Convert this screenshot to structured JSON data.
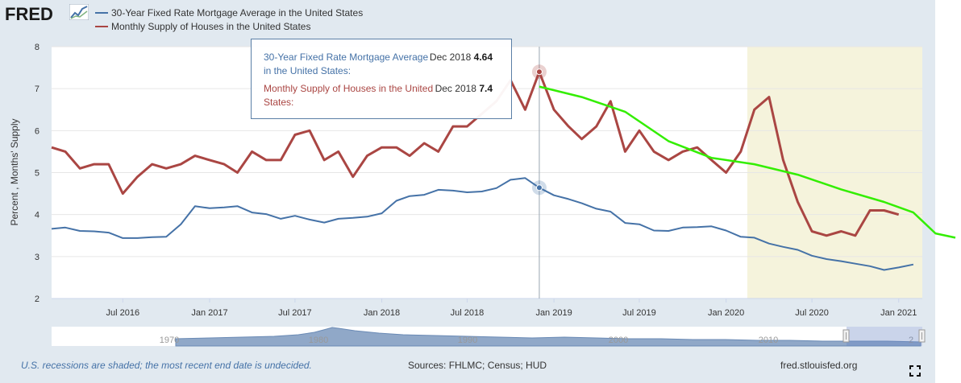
{
  "logo": {
    "text": "FRED"
  },
  "legend": [
    {
      "label": "30-Year Fixed Rate Mortgage Average in the United States",
      "color": "#4572a7"
    },
    {
      "label": "Monthly Supply of Houses in the United States",
      "color": "#aa4643"
    }
  ],
  "tooltip": {
    "rows": [
      {
        "name": "30-Year Fixed Rate Mortgage Average in the United States:",
        "date": "Dec 2018",
        "value": "4.64"
      },
      {
        "name": "Monthly Supply of Houses in the United States:",
        "date": "Dec 2018",
        "value": "7.4"
      }
    ]
  },
  "footer": {
    "recession_note": "U.S. recessions are shaded; the most recent end date is undecided.",
    "sources": "Sources: FHLMC; Census; HUD",
    "site": "fred.stlouisfed.org"
  },
  "navigator": {
    "labels": [
      "1970",
      "1980",
      "1990",
      "2000",
      "2010",
      "2"
    ]
  },
  "colors": {
    "mortgage": "#4572a7",
    "supply": "#aa4643",
    "annotation": "#33ee00",
    "recession": "#f5f3dc"
  },
  "chart_data": {
    "type": "line",
    "ylabel": "Percent , Months' Supply",
    "ylim": [
      2,
      8
    ],
    "yticks": [
      2,
      3,
      4,
      5,
      6,
      7,
      8
    ],
    "x_range": [
      "2016-02-01",
      "2021-02-20"
    ],
    "xticks": [
      {
        "date": "2016-07-01",
        "label": "Jul 2016"
      },
      {
        "date": "2017-01-01",
        "label": "Jan 2017"
      },
      {
        "date": "2017-07-01",
        "label": "Jul 2017"
      },
      {
        "date": "2018-01-01",
        "label": "Jan 2018"
      },
      {
        "date": "2018-07-01",
        "label": "Jul 2018"
      },
      {
        "date": "2019-01-01",
        "label": "Jan 2019"
      },
      {
        "date": "2019-07-01",
        "label": "Jul 2019"
      },
      {
        "date": "2020-01-01",
        "label": "Jan 2020"
      },
      {
        "date": "2020-07-01",
        "label": "Jul 2020"
      },
      {
        "date": "2021-01-01",
        "label": "Jan 2021"
      }
    ],
    "recession": {
      "start": "2020-02-15",
      "end": "2021-02-20"
    },
    "grid": true,
    "highlight_date": "2018-12-01",
    "series": [
      {
        "name": "30-Year Fixed Rate Mortgage Average in the United States",
        "x": [
          "2016-02-01",
          "2016-03-01",
          "2016-04-01",
          "2016-05-01",
          "2016-06-01",
          "2016-07-01",
          "2016-08-01",
          "2016-09-01",
          "2016-10-01",
          "2016-11-01",
          "2016-12-01",
          "2017-01-01",
          "2017-02-01",
          "2017-03-01",
          "2017-04-01",
          "2017-05-01",
          "2017-06-01",
          "2017-07-01",
          "2017-08-01",
          "2017-09-01",
          "2017-10-01",
          "2017-11-01",
          "2017-12-01",
          "2018-01-01",
          "2018-02-01",
          "2018-03-01",
          "2018-04-01",
          "2018-05-01",
          "2018-06-01",
          "2018-07-01",
          "2018-08-01",
          "2018-09-01",
          "2018-10-01",
          "2018-11-01",
          "2018-12-01",
          "2019-01-01",
          "2019-02-01",
          "2019-03-01",
          "2019-04-01",
          "2019-05-01",
          "2019-06-01",
          "2019-07-01",
          "2019-08-01",
          "2019-09-01",
          "2019-10-01",
          "2019-11-01",
          "2019-12-01",
          "2020-01-01",
          "2020-02-01",
          "2020-03-01",
          "2020-04-01",
          "2020-05-01",
          "2020-06-01",
          "2020-07-01",
          "2020-08-01",
          "2020-09-01",
          "2020-10-01",
          "2020-11-01",
          "2020-12-01",
          "2021-01-01",
          "2021-02-01"
        ],
        "values": [
          3.66,
          3.69,
          3.61,
          3.6,
          3.57,
          3.44,
          3.44,
          3.46,
          3.47,
          3.77,
          4.2,
          4.15,
          4.17,
          4.2,
          4.05,
          4.01,
          3.9,
          3.97,
          3.88,
          3.81,
          3.9,
          3.92,
          3.95,
          4.03,
          4.33,
          4.44,
          4.47,
          4.59,
          4.57,
          4.53,
          4.55,
          4.63,
          4.83,
          4.87,
          4.64,
          4.46,
          4.37,
          4.27,
          4.14,
          4.07,
          3.8,
          3.77,
          3.62,
          3.61,
          3.69,
          3.7,
          3.72,
          3.62,
          3.47,
          3.45,
          3.31,
          3.23,
          3.16,
          3.02,
          2.94,
          2.89,
          2.83,
          2.77,
          2.68,
          2.74,
          2.81
        ]
      },
      {
        "name": "Monthly Supply of Houses in the United States",
        "x": [
          "2016-02-01",
          "2016-03-01",
          "2016-04-01",
          "2016-05-01",
          "2016-06-01",
          "2016-07-01",
          "2016-08-01",
          "2016-09-01",
          "2016-10-01",
          "2016-11-01",
          "2016-12-01",
          "2017-01-01",
          "2017-02-01",
          "2017-03-01",
          "2017-04-01",
          "2017-05-01",
          "2017-06-01",
          "2017-07-01",
          "2017-08-01",
          "2017-09-01",
          "2017-10-01",
          "2017-11-01",
          "2017-12-01",
          "2018-01-01",
          "2018-02-01",
          "2018-03-01",
          "2018-04-01",
          "2018-05-01",
          "2018-06-01",
          "2018-07-01",
          "2018-08-01",
          "2018-09-01",
          "2018-10-01",
          "2018-11-01",
          "2018-12-01",
          "2019-01-01",
          "2019-02-01",
          "2019-03-01",
          "2019-04-01",
          "2019-05-01",
          "2019-06-01",
          "2019-07-01",
          "2019-08-01",
          "2019-09-01",
          "2019-10-01",
          "2019-11-01",
          "2019-12-01",
          "2020-01-01",
          "2020-02-01",
          "2020-03-01",
          "2020-04-01",
          "2020-05-01",
          "2020-06-01",
          "2020-07-01",
          "2020-08-01",
          "2020-09-01",
          "2020-10-01",
          "2020-11-01",
          "2020-12-01",
          "2021-01-01"
        ],
        "values": [
          5.6,
          5.5,
          5.1,
          5.2,
          5.2,
          4.5,
          4.9,
          5.2,
          5.1,
          5.2,
          5.4,
          5.3,
          5.2,
          5.0,
          5.5,
          5.3,
          5.3,
          5.9,
          6.0,
          5.3,
          5.5,
          4.9,
          5.4,
          5.6,
          5.6,
          5.4,
          5.7,
          5.5,
          6.1,
          6.1,
          6.4,
          6.7,
          7.2,
          6.5,
          7.4,
          6.5,
          6.1,
          5.8,
          6.1,
          6.7,
          5.5,
          6.0,
          5.5,
          5.3,
          5.5,
          5.6,
          5.3,
          5.0,
          5.5,
          6.5,
          6.8,
          5.3,
          4.3,
          3.6,
          3.5,
          3.6,
          3.5,
          4.1,
          4.1,
          4.0
        ]
      }
    ],
    "annotation_curve": {
      "x": [
        "2018-12-01",
        "2019-03-01",
        "2019-06-01",
        "2019-09-01",
        "2019-12-01",
        "2020-03-01",
        "2020-06-01",
        "2020-09-01",
        "2020-12-01",
        "2021-02-01",
        "2021-03-20",
        "2021-05-01"
      ],
      "values": [
        7.05,
        6.8,
        6.45,
        5.75,
        5.35,
        5.2,
        4.95,
        4.6,
        4.3,
        4.05,
        3.55,
        3.45
      ]
    }
  }
}
